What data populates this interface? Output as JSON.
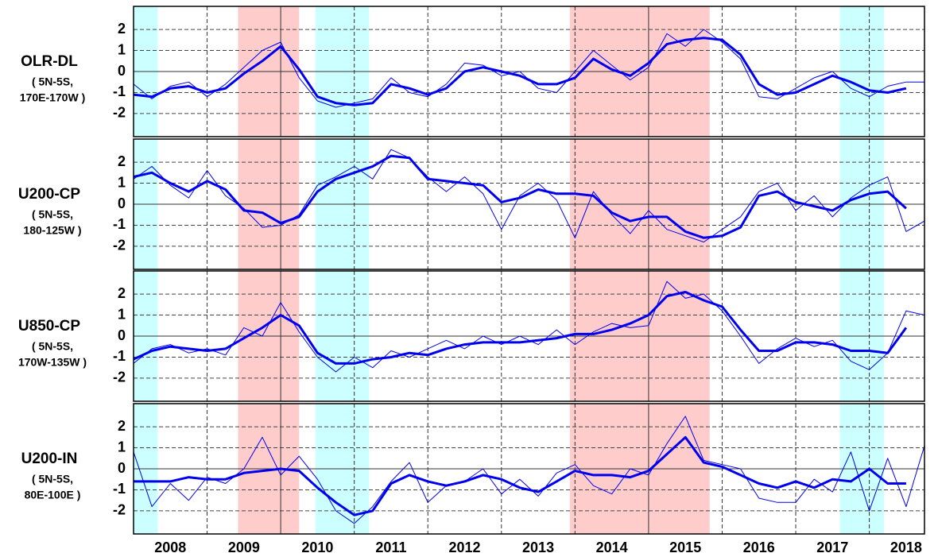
{
  "chart_data": [
    {
      "type": "line",
      "label": "OLR-DL",
      "sublabel": [
        "( 5N-5S,",
        "170E-170W )"
      ],
      "x": [
        2008.0,
        2008.25,
        2008.5,
        2008.75,
        2009.0,
        2009.25,
        2009.5,
        2009.75,
        2010.0,
        2010.25,
        2010.5,
        2010.75,
        2011.0,
        2011.25,
        2011.5,
        2011.75,
        2012.0,
        2012.25,
        2012.5,
        2012.75,
        2013.0,
        2013.25,
        2013.5,
        2013.75,
        2014.0,
        2014.25,
        2014.5,
        2014.75,
        2015.0,
        2015.25,
        2015.5,
        2015.75,
        2016.0,
        2016.25,
        2016.5,
        2016.75,
        2017.0,
        2017.25,
        2017.5,
        2017.75,
        2018.0,
        2018.25,
        2018.5,
        2018.75
      ],
      "series": [
        {
          "color": "#0000ee",
          "values": [
            -0.6,
            -1.3,
            -0.7,
            -0.5,
            -1.2,
            -0.6,
            0.2,
            1.0,
            1.4,
            -0.3,
            -1.4,
            -1.7,
            -1.5,
            -1.3,
            -0.3,
            -1.0,
            -1.2,
            -0.6,
            0.4,
            0.3,
            -0.2,
            0.0,
            -0.8,
            -1.0,
            0.0,
            1.0,
            0.3,
            -0.4,
            0.2,
            1.8,
            1.2,
            2.0,
            1.4,
            0.6,
            -1.2,
            -1.3,
            -0.8,
            -0.3,
            0.0,
            -0.8,
            -1.2,
            -0.7,
            -0.5,
            -0.5
          ]
        },
        {
          "color": "#0000ee",
          "values": [
            -1.1,
            -1.2,
            -0.8,
            -0.7,
            -1.0,
            -0.8,
            -0.1,
            0.5,
            1.2,
            0.1,
            -1.2,
            -1.5,
            -1.6,
            -1.5,
            -0.6,
            -0.8,
            -1.1,
            -0.8,
            0.0,
            0.2,
            0.0,
            -0.2,
            -0.6,
            -0.6,
            -0.3,
            0.6,
            0.1,
            -0.2,
            0.4,
            1.3,
            1.5,
            1.6,
            1.5,
            0.8,
            -0.6,
            -1.1,
            -1.0,
            -0.6,
            -0.2,
            -0.5,
            -0.9,
            -1.0,
            -0.8,
            null
          ]
        }
      ],
      "xlim": [
        2008.0,
        2018.75
      ],
      "ylim": [
        -3.1,
        3.1
      ],
      "yticks": [
        -2,
        -1,
        0,
        1,
        2
      ],
      "xgrid": [
        2009,
        2010,
        2011,
        2012,
        2013,
        2014,
        2015,
        2016,
        2017,
        2018
      ],
      "shaded_periods": [
        {
          "start": 2008.0,
          "end": 2008.33,
          "color": "#ccffff"
        },
        {
          "start": 2009.42,
          "end": 2010.25,
          "color": "#ffcccc"
        },
        {
          "start": 2010.47,
          "end": 2011.2,
          "color": "#ccffff"
        },
        {
          "start": 2013.93,
          "end": 2015.83,
          "color": "#ffcccc"
        },
        {
          "start": 2017.6,
          "end": 2018.2,
          "color": "#ccffff"
        }
      ]
    },
    {
      "type": "line",
      "label": "U200-CP",
      "sublabel": [
        "( 5N-5S,",
        "180-125W )"
      ],
      "x": [
        2008.0,
        2008.25,
        2008.5,
        2008.75,
        2009.0,
        2009.25,
        2009.5,
        2009.75,
        2010.0,
        2010.25,
        2010.5,
        2010.75,
        2011.0,
        2011.25,
        2011.5,
        2011.75,
        2012.0,
        2012.25,
        2012.5,
        2012.75,
        2013.0,
        2013.25,
        2013.5,
        2013.75,
        2014.0,
        2014.25,
        2014.5,
        2014.75,
        2015.0,
        2015.25,
        2015.5,
        2015.75,
        2016.0,
        2016.25,
        2016.5,
        2016.75,
        2017.0,
        2017.25,
        2017.5,
        2017.75,
        2018.0,
        2018.25,
        2018.5,
        2018.75
      ],
      "series": [
        {
          "color": "#0000ee",
          "values": [
            1.2,
            1.8,
            0.9,
            0.3,
            1.6,
            0.4,
            -0.2,
            -1.1,
            -1.0,
            -0.5,
            0.9,
            1.3,
            1.8,
            1.2,
            2.6,
            2.2,
            1.3,
            0.6,
            1.3,
            0.5,
            -1.2,
            0.4,
            1.0,
            0.2,
            -1.6,
            0.6,
            -0.5,
            -1.4,
            -0.3,
            -1.2,
            -1.5,
            -1.8,
            -1.2,
            -0.6,
            0.6,
            1.0,
            -0.3,
            0.4,
            -0.6,
            0.3,
            0.9,
            1.3,
            -1.3,
            -0.8
          ]
        },
        {
          "color": "#0000ee",
          "values": [
            1.3,
            1.5,
            1.0,
            0.6,
            1.1,
            0.7,
            -0.3,
            -0.4,
            -0.9,
            -0.6,
            0.6,
            1.2,
            1.5,
            1.8,
            2.3,
            2.2,
            1.2,
            1.1,
            1.0,
            0.9,
            0.1,
            0.3,
            0.7,
            0.5,
            0.5,
            0.4,
            -0.4,
            -0.8,
            -0.6,
            -0.6,
            -1.3,
            -1.6,
            -1.5,
            -1.1,
            0.4,
            0.6,
            0.1,
            -0.1,
            -0.3,
            0.2,
            0.5,
            0.6,
            -0.2,
            null
          ]
        }
      ],
      "xlim": [
        2008.0,
        2018.75
      ],
      "ylim": [
        -3.1,
        3.1
      ],
      "yticks": [
        -2,
        -1,
        0,
        1,
        2
      ],
      "xgrid": [
        2009,
        2010,
        2011,
        2012,
        2013,
        2014,
        2015,
        2016,
        2017,
        2018
      ],
      "shaded_periods": [
        {
          "start": 2008.0,
          "end": 2008.33,
          "color": "#ccffff"
        },
        {
          "start": 2009.42,
          "end": 2010.25,
          "color": "#ffcccc"
        },
        {
          "start": 2010.47,
          "end": 2011.2,
          "color": "#ccffff"
        },
        {
          "start": 2013.93,
          "end": 2015.83,
          "color": "#ffcccc"
        },
        {
          "start": 2017.6,
          "end": 2018.2,
          "color": "#ccffff"
        }
      ]
    },
    {
      "type": "line",
      "label": "U850-CP",
      "sublabel": [
        "( 5N-5S,",
        "170W-135W )"
      ],
      "x": [
        2008.0,
        2008.25,
        2008.5,
        2008.75,
        2009.0,
        2009.25,
        2009.5,
        2009.75,
        2010.0,
        2010.25,
        2010.5,
        2010.75,
        2011.0,
        2011.25,
        2011.5,
        2011.75,
        2012.0,
        2012.25,
        2012.5,
        2012.75,
        2013.0,
        2013.25,
        2013.5,
        2013.75,
        2014.0,
        2014.25,
        2014.5,
        2014.75,
        2015.0,
        2015.25,
        2015.5,
        2015.75,
        2016.0,
        2016.25,
        2016.5,
        2016.75,
        2017.0,
        2017.25,
        2017.5,
        2017.75,
        2018.0,
        2018.25,
        2018.5,
        2018.75
      ],
      "series": [
        {
          "color": "#0000ee",
          "values": [
            -1.3,
            -0.6,
            -0.4,
            -0.8,
            -0.6,
            -0.9,
            0.4,
            0.0,
            1.6,
            0.2,
            -1.0,
            -1.7,
            -1.0,
            -1.5,
            -0.7,
            -1.0,
            -0.6,
            -0.2,
            -0.6,
            0.0,
            -0.4,
            0.0,
            -0.4,
            0.3,
            -0.4,
            0.2,
            0.6,
            0.4,
            0.5,
            2.6,
            1.8,
            2.0,
            1.2,
            0.0,
            -1.3,
            -0.6,
            -0.1,
            -0.5,
            -0.2,
            -1.2,
            -1.6,
            -0.8,
            1.2,
            1.0
          ]
        },
        {
          "color": "#0000ee",
          "values": [
            -1.1,
            -0.7,
            -0.5,
            -0.6,
            -0.7,
            -0.6,
            -0.1,
            0.4,
            1.0,
            0.5,
            -0.8,
            -1.3,
            -1.3,
            -1.1,
            -1.0,
            -0.8,
            -0.9,
            -0.6,
            -0.4,
            -0.3,
            -0.3,
            -0.3,
            -0.2,
            -0.1,
            0.1,
            0.1,
            0.3,
            0.6,
            1.0,
            1.9,
            2.1,
            1.7,
            1.4,
            0.3,
            -0.7,
            -0.7,
            -0.3,
            -0.3,
            -0.4,
            -0.7,
            -0.7,
            -0.8,
            0.4,
            null
          ]
        }
      ],
      "xlim": [
        2008.0,
        2018.75
      ],
      "ylim": [
        -3.1,
        3.1
      ],
      "yticks": [
        -2,
        -1,
        0,
        1,
        2
      ],
      "xgrid": [
        2009,
        2010,
        2011,
        2012,
        2013,
        2014,
        2015,
        2016,
        2017,
        2018
      ],
      "shaded_periods": [
        {
          "start": 2008.0,
          "end": 2008.33,
          "color": "#ccffff"
        },
        {
          "start": 2009.42,
          "end": 2010.25,
          "color": "#ffcccc"
        },
        {
          "start": 2010.47,
          "end": 2011.2,
          "color": "#ccffff"
        },
        {
          "start": 2013.93,
          "end": 2015.83,
          "color": "#ffcccc"
        },
        {
          "start": 2017.6,
          "end": 2018.2,
          "color": "#ccffff"
        }
      ]
    },
    {
      "type": "line",
      "label": "U200-IN",
      "sublabel": [
        "( 5N-5S,",
        "80E-100E )"
      ],
      "x": [
        2008.0,
        2008.25,
        2008.5,
        2008.75,
        2009.0,
        2009.25,
        2009.5,
        2009.75,
        2010.0,
        2010.25,
        2010.5,
        2010.75,
        2011.0,
        2011.25,
        2011.5,
        2011.75,
        2012.0,
        2012.25,
        2012.5,
        2012.75,
        2013.0,
        2013.25,
        2013.5,
        2013.75,
        2014.0,
        2014.25,
        2014.5,
        2014.75,
        2015.0,
        2015.25,
        2015.5,
        2015.75,
        2016.0,
        2016.25,
        2016.5,
        2016.75,
        2017.0,
        2017.25,
        2017.5,
        2017.75,
        2018.0,
        2018.25,
        2018.5,
        2018.75
      ],
      "series": [
        {
          "color": "#0000ee",
          "values": [
            0.8,
            -1.8,
            -0.7,
            -1.5,
            -0.4,
            -0.7,
            0.0,
            1.5,
            -0.3,
            0.6,
            -0.5,
            -2.0,
            -2.6,
            -1.8,
            -0.6,
            0.3,
            -1.6,
            -0.8,
            -0.6,
            0.0,
            -1.2,
            -0.5,
            -1.3,
            -0.2,
            0.2,
            -0.8,
            -1.2,
            0.0,
            -0.3,
            1.2,
            2.5,
            0.4,
            0.2,
            0.0,
            -1.4,
            -1.6,
            -1.6,
            -0.5,
            -1.1,
            0.8,
            -2.0,
            0.5,
            -1.8,
            1.1
          ]
        },
        {
          "color": "#0000ee",
          "values": [
            -0.6,
            -0.6,
            -0.6,
            -0.4,
            -0.5,
            -0.5,
            -0.2,
            -0.1,
            0.0,
            -0.1,
            -0.9,
            -1.6,
            -2.2,
            -2.0,
            -0.7,
            -0.3,
            -0.6,
            -0.8,
            -0.6,
            -0.3,
            -0.5,
            -0.9,
            -1.1,
            -0.6,
            -0.1,
            -0.3,
            -0.3,
            -0.4,
            -0.1,
            0.7,
            1.5,
            0.3,
            0.1,
            -0.3,
            -0.7,
            -0.9,
            -0.6,
            -0.9,
            -0.5,
            -0.6,
            0.0,
            -0.7,
            -0.7,
            null
          ]
        }
      ],
      "xlim": [
        2008.0,
        2018.75
      ],
      "ylim": [
        -3.1,
        3.1
      ],
      "yticks": [
        -2,
        -1,
        0,
        1,
        2
      ],
      "xgrid": [
        2009,
        2010,
        2011,
        2012,
        2013,
        2014,
        2015,
        2016,
        2017,
        2018
      ],
      "xticks": [
        {
          "value": 2008.5,
          "label": "2008"
        },
        {
          "value": 2009.5,
          "label": "2009"
        },
        {
          "value": 2010.5,
          "label": "2010"
        },
        {
          "value": 2011.5,
          "label": "2011"
        },
        {
          "value": 2012.5,
          "label": "2012"
        },
        {
          "value": 2013.5,
          "label": "2013"
        },
        {
          "value": 2014.5,
          "label": "2014"
        },
        {
          "value": 2015.5,
          "label": "2015"
        },
        {
          "value": 2016.5,
          "label": "2016"
        },
        {
          "value": 2017.5,
          "label": "2017"
        },
        {
          "value": 2018.5,
          "label": "2018"
        }
      ],
      "shaded_periods": [
        {
          "start": 2008.0,
          "end": 2008.33,
          "color": "#ccffff"
        },
        {
          "start": 2009.42,
          "end": 2010.25,
          "color": "#ffcccc"
        },
        {
          "start": 2010.47,
          "end": 2011.2,
          "color": "#ccffff"
        },
        {
          "start": 2013.93,
          "end": 2015.83,
          "color": "#ffcccc"
        },
        {
          "start": 2017.6,
          "end": 2018.2,
          "color": "#ccffff"
        }
      ]
    }
  ]
}
